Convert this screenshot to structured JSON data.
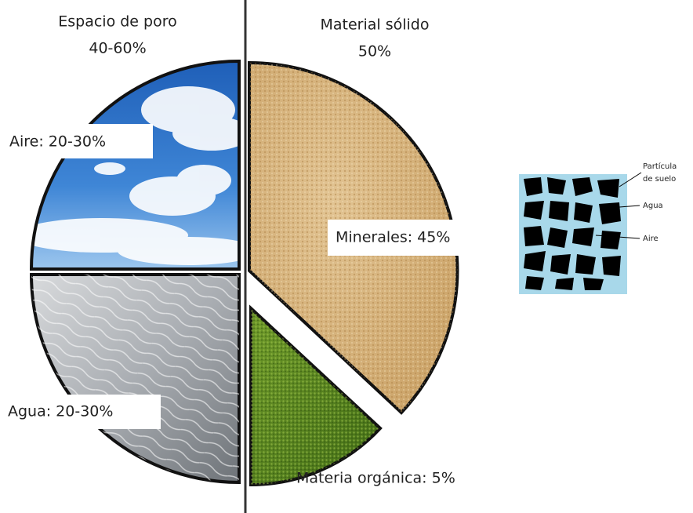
{
  "header": {
    "pore_title": "Espacio de poro",
    "pore_range": "40-60%",
    "solid_title": "Material sólido",
    "solid_range": "50%"
  },
  "slices": {
    "air": "Aire: 20-30%",
    "water": "Agua: 20-30%",
    "minerals": "Minerales: 45%",
    "organic": "Materia orgánica: 5%"
  },
  "inset": {
    "particle_1": "Partícula",
    "particle_2": "de suelo",
    "water": "Agua",
    "air": "Aire"
  }
}
